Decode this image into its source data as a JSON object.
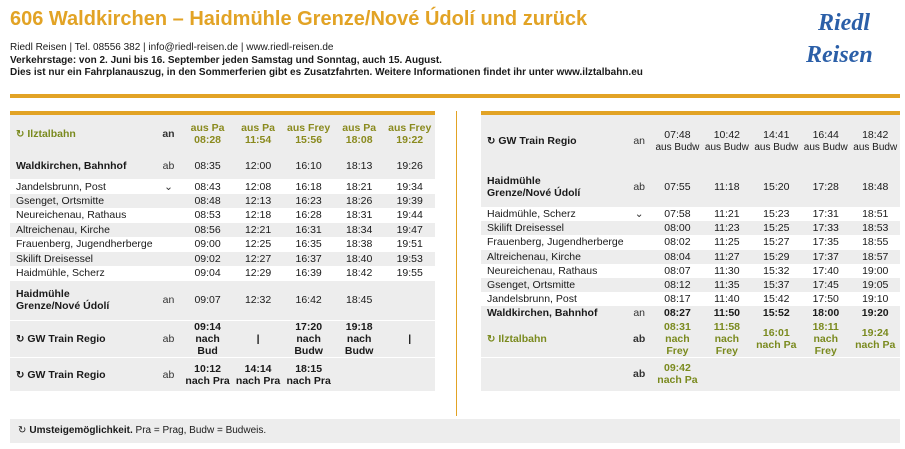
{
  "header": {
    "title": "606 Waldkirchen – Haidmühle Grenze/Nové Údolí und zurück",
    "contact": "Riedl Reisen | Tel. 08556 382 | info@riedl-reisen.de | www.riedl-reisen.de",
    "verkehrstage": "Verkehrstage: von 2. Juni bis 16. September jeden Samstag und Sonntag, auch 15. August.",
    "hinweis": "Dies ist nur ein Fahrplanauszug, in den Sommerferien gibt es Zusatzfahrten. Weitere Informationen findet ihr unter www.ilztalbahn.eu",
    "logo_line1": "Riedl",
    "logo_line2": "Reisen"
  },
  "left": {
    "header_row": {
      "stop": "Ilztalbahn",
      "ab": "an",
      "times": [
        [
          "aus Pa",
          "08:28"
        ],
        [
          "aus Pa",
          "11:54"
        ],
        [
          "aus Frey",
          "15:56"
        ],
        [
          "aus Pa",
          "18:08"
        ],
        [
          "aus Frey",
          "19:22"
        ]
      ]
    },
    "rows": [
      {
        "stop": "Waldkirchen, Bahnhof",
        "ab": "ab",
        "times": [
          "08:35",
          "12:00",
          "16:10",
          "18:13",
          "19:26"
        ],
        "bold": true,
        "shade": true
      },
      {
        "stop": "Jandelsbrunn, Post",
        "ab": "⌄",
        "times": [
          "08:43",
          "12:08",
          "16:18",
          "18:21",
          "19:34"
        ]
      },
      {
        "stop": "Gsenget, Ortsmitte",
        "ab": "",
        "times": [
          "08:48",
          "12:13",
          "16:23",
          "18:26",
          "19:39"
        ]
      },
      {
        "stop": "Neureichenau, Rathaus",
        "ab": "",
        "times": [
          "08:53",
          "12:18",
          "16:28",
          "18:31",
          "19:44"
        ]
      },
      {
        "stop": "Altreichenau, Kirche",
        "ab": "",
        "times": [
          "08:56",
          "12:21",
          "16:31",
          "18:34",
          "19:47"
        ]
      },
      {
        "stop": "Frauenberg, Jugendherberge",
        "ab": "",
        "times": [
          "09:00",
          "12:25",
          "16:35",
          "18:38",
          "19:51"
        ]
      },
      {
        "stop": "Skilift Dreisessel",
        "ab": "",
        "times": [
          "09:02",
          "12:27",
          "16:37",
          "18:40",
          "19:53"
        ]
      },
      {
        "stop": "Haidmühle, Scherz",
        "ab": "",
        "times": [
          "09:04",
          "12:29",
          "16:39",
          "18:42",
          "19:55"
        ]
      }
    ],
    "haidmuehle": {
      "stop1": "Haidmühle",
      "stop2": "Grenze/Nové Údolí",
      "ab": "an",
      "times": [
        "09:07",
        "12:32",
        "16:42",
        "18:45",
        ""
      ]
    },
    "gw1": {
      "stop": "GW Train Regio",
      "ab": "ab",
      "times": [
        [
          "09:14",
          "nach Bud"
        ],
        [
          "|",
          ""
        ],
        [
          "17:20",
          "nach Budw"
        ],
        [
          "19:18",
          "nach Budw"
        ],
        [
          "|",
          ""
        ]
      ]
    },
    "gw2": {
      "stop": "GW Train Regio",
      "ab": "ab",
      "times": [
        [
          "10:12",
          "nach Pra"
        ],
        [
          "14:14",
          "nach Pra"
        ],
        [
          "18:15",
          "nach Pra"
        ],
        [
          "",
          ""
        ],
        [
          "",
          ""
        ]
      ]
    }
  },
  "right": {
    "header_row": {
      "stop": "GW Train Regio",
      "ab": "an",
      "times": [
        [
          "07:48",
          "aus Budw"
        ],
        [
          "10:42",
          "aus Budw"
        ],
        [
          "14:41",
          "aus Budw"
        ],
        [
          "16:44",
          "aus Budw"
        ],
        [
          "18:42",
          "aus Budw"
        ]
      ]
    },
    "haidmuehle": {
      "stop1": "Haidmühle",
      "stop2": "Grenze/Nové Údolí",
      "ab": "ab",
      "times": [
        "07:55",
        "11:18",
        "15:20",
        "17:28",
        "18:48"
      ]
    },
    "rows": [
      {
        "stop": "Haidmühle, Scherz",
        "ab": "⌄",
        "times": [
          "07:58",
          "11:21",
          "15:23",
          "17:31",
          "18:51"
        ]
      },
      {
        "stop": "Skilift Dreisessel",
        "ab": "",
        "times": [
          "08:00",
          "11:23",
          "15:25",
          "17:33",
          "18:53"
        ]
      },
      {
        "stop": "Frauenberg, Jugendherberge",
        "ab": "",
        "times": [
          "08:02",
          "11:25",
          "15:27",
          "17:35",
          "18:55"
        ]
      },
      {
        "stop": "Altreichenau, Kirche",
        "ab": "",
        "times": [
          "08:04",
          "11:27",
          "15:29",
          "17:37",
          "18:57"
        ]
      },
      {
        "stop": "Neureichenau, Rathaus",
        "ab": "",
        "times": [
          "08:07",
          "11:30",
          "15:32",
          "17:40",
          "19:00"
        ]
      },
      {
        "stop": "Gsenget, Ortsmitte",
        "ab": "",
        "times": [
          "08:12",
          "11:35",
          "15:37",
          "17:45",
          "19:05"
        ]
      },
      {
        "stop": "Jandelsbrunn, Post",
        "ab": "",
        "times": [
          "08:17",
          "11:40",
          "15:42",
          "17:50",
          "19:10"
        ]
      },
      {
        "stop": "Waldkirchen, Bahnhof",
        "ab": "an",
        "times": [
          "08:27",
          "11:50",
          "15:52",
          "18:00",
          "19:20"
        ],
        "bold": true
      }
    ],
    "ilz1": {
      "stop": "Ilztalbahn",
      "ab": "ab",
      "times": [
        [
          "08:31",
          "nach Frey"
        ],
        [
          "11:58",
          "nach Frey"
        ],
        [
          "16:01",
          "nach Pa"
        ],
        [
          "18:11",
          "nach Frey"
        ],
        [
          "19:24",
          "nach Pa"
        ]
      ]
    },
    "ilz2": {
      "ab": "ab",
      "times": [
        [
          "09:42",
          "nach Pa"
        ],
        [
          "",
          ""
        ],
        [
          "",
          ""
        ],
        [
          "",
          ""
        ],
        [
          "",
          ""
        ]
      ]
    }
  },
  "footer": {
    "bold": "Umsteigemöglichkeit.",
    "text": " Pra = Prag, Budw = Budweis."
  },
  "colors": {
    "accent": "#e2a325",
    "olive": "#8a8a1e",
    "shade": "#ededed"
  }
}
